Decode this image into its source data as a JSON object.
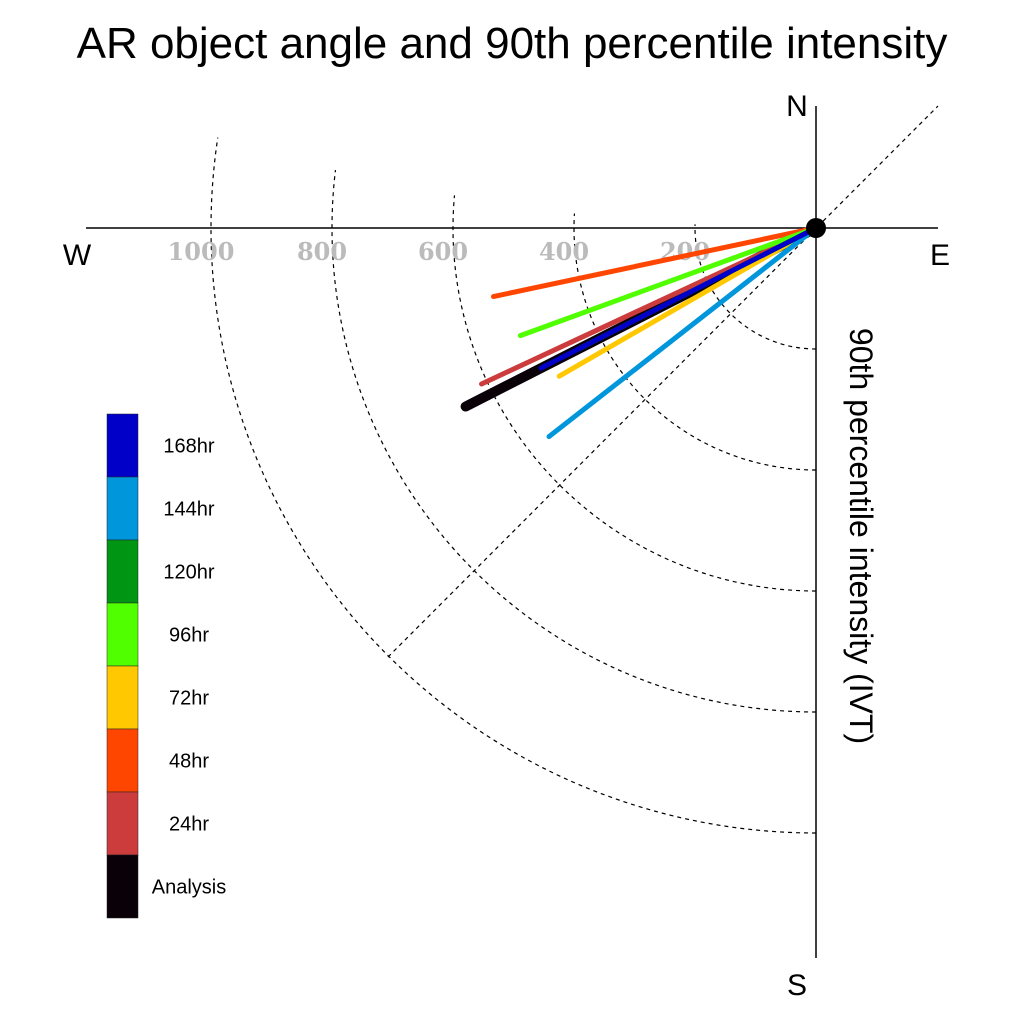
{
  "chart_data": {
    "type": "polar-vector",
    "title": "AR object angle and 90th percentile intensity",
    "ylabel": "90th percentile intensity (IVT)",
    "compass": {
      "north": "N",
      "south": "S",
      "east": "E",
      "west": "W"
    },
    "radial_ticks": [
      "200",
      "400",
      "600",
      "800",
      "1000"
    ],
    "radial_tick_values": [
      200,
      400,
      600,
      800,
      1000
    ],
    "rlim": [
      0,
      1000
    ],
    "series": [
      {
        "name": "168hr",
        "color": "#0000c8",
        "angle_deg_from_east": 207,
        "intensity": 510
      },
      {
        "name": "144hr",
        "color": "#0096dc",
        "angle_deg_from_east": 218,
        "intensity": 560
      },
      {
        "name": "120hr",
        "color": "#009614",
        "angle_deg_from_east": 207,
        "intensity": 440
      },
      {
        "name": "96hr",
        "color": "#50ff00",
        "angle_deg_from_east": 200,
        "intensity": 520
      },
      {
        "name": "72hr",
        "color": "#ffc800",
        "angle_deg_from_east": 210,
        "intensity": 490
      },
      {
        "name": "48hr",
        "color": "#ff4600",
        "angle_deg_from_east": 192,
        "intensity": 545
      },
      {
        "name": "24hr",
        "color": "#cc3c3c",
        "angle_deg_from_east": 205,
        "intensity": 610
      },
      {
        "name": "Analysis",
        "color": "#0a0008",
        "angle_deg_from_east": 207,
        "intensity": 650
      }
    ]
  }
}
